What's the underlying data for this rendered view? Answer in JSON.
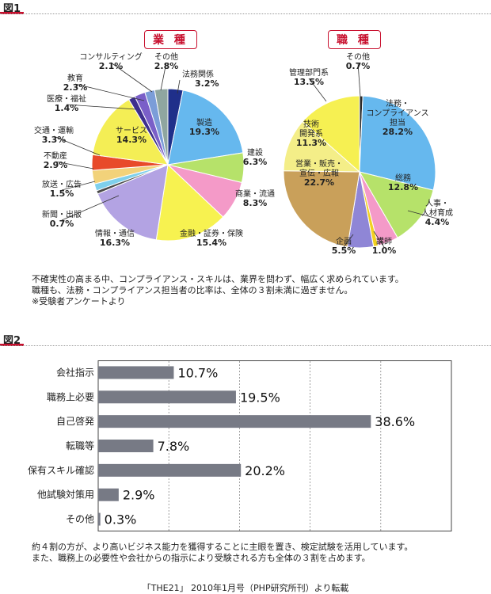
{
  "fig1": {
    "label": "図1",
    "caption": [
      "不確実性の高まる中、コンプライアンス・スキルは、業界を問わず、幅広く求められています。",
      "職種も、法務・コンプライアンス担当者の比率は、全体の３割未満に過ぎません。",
      "※受験者アンケートより"
    ]
  },
  "fig2": {
    "label": "図2",
    "caption": [
      "約４割の方が、より高いビジネス能力を獲得することに主眼を置き、検定試験を活用しています。",
      "また、職務上の必要性や会社からの指示により受験される方も全体の３割を占めます。"
    ]
  },
  "source": "「THE21」 2010年1月号（PHP研究所刊）より転載",
  "chart_data": [
    {
      "type": "pie",
      "title": "業 種",
      "slices": [
        {
          "label": "法務関係",
          "value": 3.2,
          "color": "#1f2f8a"
        },
        {
          "label": "製造",
          "value": 19.3,
          "color": "#66b8ee"
        },
        {
          "label": "建設",
          "value": 6.3,
          "color": "#b6e26a"
        },
        {
          "label": "商業・流通",
          "value": 8.3,
          "color": "#f49ac8"
        },
        {
          "label": "金融・証券・保険",
          "value": 15.4,
          "color": "#f7f250"
        },
        {
          "label": "情報・通信",
          "value": 16.3,
          "color": "#b3a3e3"
        },
        {
          "label": "新聞・出版",
          "value": 0.7,
          "color": "#4a4a4a"
        },
        {
          "label": "放送・広告",
          "value": 1.5,
          "color": "#7fd0ec"
        },
        {
          "label": "不動産",
          "value": 2.9,
          "color": "#f2d27a"
        },
        {
          "label": "交通・運輸",
          "value": 3.3,
          "color": "#e84a2a"
        },
        {
          "label": "サービス",
          "value": 14.3,
          "color": "#f4ee55"
        },
        {
          "label": "医療・福祉",
          "value": 1.4,
          "color": "#3e2f8e"
        },
        {
          "label": "教育",
          "value": 2.3,
          "color": "#7a5fc8"
        },
        {
          "label": "コンサルティング",
          "value": 2.1,
          "color": "#7b9dd8"
        },
        {
          "label": "その他",
          "value": 2.8,
          "color": "#8fa6a0"
        }
      ]
    },
    {
      "type": "pie",
      "title": "職 種",
      "slices": [
        {
          "label": "その他",
          "value": 0.7,
          "color": "#2a2a2a"
        },
        {
          "label": "法務・コンプライアンス担当",
          "value": 28.2,
          "color": "#66b8ee"
        },
        {
          "label": "総務",
          "value": 12.8,
          "color": "#b6e26a"
        },
        {
          "label": "人事・人材育成",
          "value": 4.4,
          "color": "#f49ac8"
        },
        {
          "label": "講師",
          "value": 1.0,
          "color": "#f2d020"
        },
        {
          "label": "企画",
          "value": 5.5,
          "color": "#8f86d6"
        },
        {
          "label": "営業・販売・宣伝・広報",
          "value": 22.7,
          "color": "#c9a05a"
        },
        {
          "label": "技術開発系",
          "value": 11.3,
          "color": "#f4ee88"
        },
        {
          "label": "管理部門系",
          "value": 13.5,
          "color": "#f6f052"
        }
      ]
    },
    {
      "type": "bar",
      "orientation": "horizontal",
      "categories": [
        "会社指示",
        "職務上必要",
        "自己啓発",
        "転職等",
        "保有スキル確認",
        "他試験対策用",
        "その他"
      ],
      "values": [
        10.7,
        19.5,
        38.6,
        7.8,
        20.2,
        2.9,
        0.3
      ],
      "value_labels": [
        "10.7%",
        "19.5%",
        "38.6%",
        "7.8%",
        "20.2%",
        "2.9%",
        "0.3%"
      ],
      "xlim": [
        0,
        50
      ],
      "grid": true,
      "bar_color": "#777a85"
    }
  ]
}
